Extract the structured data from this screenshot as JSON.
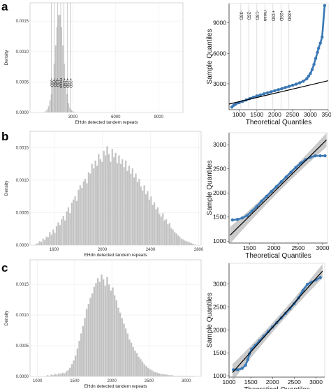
{
  "panels": {
    "a": {
      "letter": "a"
    },
    "b": {
      "letter": "b"
    },
    "c": {
      "letter": "c"
    }
  },
  "chart_data": [
    {
      "id": "hist-a",
      "type": "bar",
      "xlabel": "EHdn detected tandem repeats",
      "ylabel": "Density",
      "xlim": [
        0,
        10700
      ],
      "ylim": [
        0,
        0.0018
      ],
      "xticks": [
        3000,
        6000,
        9000
      ],
      "xtick_labels": [
        "3000",
        "6000",
        "9000"
      ],
      "yticks": [
        0,
        0.0005,
        0.001,
        0.0015
      ],
      "ytick_labels": [
        "0.0000",
        "0.0005",
        "0.0010",
        "0.0015"
      ],
      "bin_width": 100,
      "x": [
        1100,
        1200,
        1300,
        1400,
        1500,
        1600,
        1700,
        1800,
        1900,
        2000,
        2100,
        2200,
        2300,
        2400,
        2500,
        2600,
        2700,
        2800,
        2900,
        3000,
        3100
      ],
      "values": [
        2e-05,
        5e-05,
        0.0001,
        0.0002,
        0.0003,
        0.0005,
        0.0008,
        0.0011,
        0.0014,
        0.0016,
        0.0016,
        0.0014,
        0.0011,
        0.0008,
        0.0005,
        0.0003,
        0.00015,
        8e-05,
        4e-05,
        2e-05,
        1e-05
      ],
      "vlines": [
        {
          "label": "-3SD",
          "x": 1480
        },
        {
          "label": "-2SD",
          "x": 1700
        },
        {
          "label": "-1SD",
          "x": 1920
        },
        {
          "label": "mean",
          "x": 2150
        },
        {
          "label": "+1SD",
          "x": 2380
        },
        {
          "label": "+2SD",
          "x": 2600
        },
        {
          "label": "+3SD",
          "x": 2820
        }
      ]
    },
    {
      "id": "qq-a",
      "type": "scatter",
      "xlabel": "Theoretical Quantiles",
      "ylabel": "Sample Quantiles",
      "xlim": [
        720,
        3500
      ],
      "ylim": [
        450,
        10900
      ],
      "xticks": [
        1000,
        1500,
        2000,
        2500,
        3000,
        3500
      ],
      "xtick_labels": [
        "1000",
        "1500",
        "2000",
        "2500",
        "3000",
        "3500"
      ],
      "yticks": [
        3000,
        6000,
        9000
      ],
      "ytick_labels": [
        "3000",
        "6000",
        "9000"
      ],
      "vlines": [
        {
          "label": "-3SD",
          "x": 1050
        },
        {
          "label": "-2SD",
          "x": 1270
        },
        {
          "label": "-1SD",
          "x": 1500
        },
        {
          "label": "mean",
          "x": 1730
        },
        {
          "label": "+1SD",
          "x": 1950
        },
        {
          "label": "+2SD",
          "x": 2180
        },
        {
          "label": "+3SD",
          "x": 2400
        }
      ],
      "points": [
        [
          800,
          700
        ],
        [
          850,
          880
        ],
        [
          900,
          980
        ],
        [
          1000,
          1130
        ],
        [
          1100,
          1260
        ],
        [
          1200,
          1400
        ],
        [
          1300,
          1540
        ],
        [
          1400,
          1670
        ],
        [
          1500,
          1800
        ],
        [
          1600,
          1900
        ],
        [
          1700,
          2010
        ],
        [
          1800,
          2110
        ],
        [
          1900,
          2210
        ],
        [
          2000,
          2310
        ],
        [
          2100,
          2410
        ],
        [
          2200,
          2520
        ],
        [
          2300,
          2630
        ],
        [
          2400,
          2740
        ],
        [
          2500,
          2850
        ],
        [
          2600,
          2960
        ],
        [
          2700,
          3090
        ],
        [
          2800,
          3250
        ],
        [
          2900,
          3500
        ],
        [
          2950,
          3750
        ],
        [
          3000,
          4000
        ],
        [
          3050,
          4400
        ],
        [
          3100,
          4900
        ],
        [
          3150,
          5500
        ],
        [
          3200,
          6100
        ],
        [
          3230,
          6500
        ],
        [
          3280,
          7000
        ],
        [
          3330,
          7600
        ],
        [
          3400,
          10700
        ]
      ],
      "fit": [
        [
          720,
          1000
        ],
        [
          3500,
          3300
        ]
      ]
    },
    {
      "id": "hist-b",
      "type": "bar",
      "xlabel": "EHdn detected tandem repeats",
      "ylabel": "Density",
      "xlim": [
        1400,
        2820
      ],
      "ylim": [
        0,
        0.00175
      ],
      "xticks": [
        1600,
        2000,
        2400,
        2800
      ],
      "xtick_labels": [
        "1600",
        "2000",
        "2400",
        "2800"
      ],
      "yticks": [
        0,
        0.0005,
        0.001,
        0.0015
      ],
      "ytick_labels": [
        "0.0000",
        "0.0005",
        "0.0010",
        "0.0015"
      ],
      "bin_width": 14,
      "x": [
        1453,
        1467,
        1481,
        1495,
        1509,
        1523,
        1537,
        1551,
        1565,
        1579,
        1593,
        1607,
        1621,
        1635,
        1649,
        1663,
        1677,
        1691,
        1705,
        1719,
        1733,
        1747,
        1761,
        1775,
        1789,
        1803,
        1817,
        1831,
        1845,
        1859,
        1873,
        1887,
        1901,
        1915,
        1929,
        1943,
        1957,
        1971,
        1985,
        1999,
        2013,
        2027,
        2041,
        2055,
        2069,
        2083,
        2097,
        2111,
        2125,
        2139,
        2153,
        2167,
        2181,
        2195,
        2209,
        2223,
        2237,
        2251,
        2265,
        2279,
        2293,
        2307,
        2321,
        2335,
        2349,
        2363,
        2377,
        2391,
        2405,
        2419,
        2433,
        2447,
        2461,
        2475,
        2489,
        2503,
        2517,
        2531,
        2545,
        2559,
        2573,
        2587,
        2601,
        2615,
        2629,
        2643,
        2657,
        2671,
        2685,
        2699,
        2713,
        2727,
        2741,
        2755,
        2769
      ],
      "values": [
        2e-05,
        3e-05,
        6e-05,
        5e-05,
        0.0001,
        8e-05,
        0.00013,
        0.00012,
        0.0002,
        0.00016,
        0.00024,
        0.00019,
        0.00029,
        0.00035,
        0.00031,
        0.0004,
        0.00045,
        0.00038,
        0.00052,
        0.00058,
        0.00049,
        0.00065,
        0.0007,
        0.00075,
        0.00068,
        0.00085,
        0.00092,
        0.00088,
        0.00098,
        0.00102,
        0.00095,
        0.00112,
        0.0011,
        0.00125,
        0.00118,
        0.0013,
        0.00122,
        0.0014,
        0.00132,
        0.00128,
        0.00145,
        0.00138,
        0.00152,
        0.0014,
        0.00128,
        0.00148,
        0.00135,
        0.00142,
        0.00126,
        0.00138,
        0.00125,
        0.00132,
        0.0012,
        0.0013,
        0.00114,
        0.00122,
        0.0011,
        0.00118,
        0.00104,
        0.0011,
        0.00097,
        0.00102,
        0.0009,
        0.00084,
        0.00092,
        0.00078,
        0.00083,
        0.0007,
        0.00075,
        0.00062,
        0.00066,
        0.00055,
        0.00058,
        0.00048,
        0.00044,
        0.00049,
        0.00038,
        0.0004,
        0.00032,
        0.00034,
        0.00026,
        0.00024,
        0.0002,
        0.00018,
        0.00015,
        0.00013,
        0.0001,
        9e-05,
        7e-05,
        6e-05,
        5e-05,
        4e-05,
        3e-05,
        2e-05,
        1e-05
      ]
    },
    {
      "id": "qq-b",
      "type": "scatter",
      "xlabel": "Theoretical Quantiles",
      "ylabel": "Sample Quantiles",
      "xlim": [
        1080,
        3100
      ],
      "ylim": [
        960,
        3250
      ],
      "xticks": [
        1500,
        2000,
        2500,
        3000
      ],
      "xtick_labels": [
        "1500",
        "2000",
        "2500",
        "3000"
      ],
      "yticks": [
        1000,
        1500,
        2000,
        2500,
        3000
      ],
      "ytick_labels": [
        "1000",
        "1500",
        "2000",
        "2500",
        "3000"
      ],
      "points": [
        [
          1150,
          1440
        ],
        [
          1250,
          1450
        ],
        [
          1350,
          1480
        ],
        [
          1450,
          1530
        ],
        [
          1550,
          1620
        ],
        [
          1650,
          1720
        ],
        [
          1750,
          1830
        ],
        [
          1850,
          1930
        ],
        [
          1950,
          2030
        ],
        [
          2050,
          2130
        ],
        [
          2150,
          2230
        ],
        [
          2250,
          2330
        ],
        [
          2350,
          2430
        ],
        [
          2450,
          2530
        ],
        [
          2550,
          2620
        ],
        [
          2650,
          2690
        ],
        [
          2750,
          2740
        ],
        [
          2850,
          2770
        ],
        [
          2950,
          2770
        ],
        [
          3050,
          2770
        ]
      ],
      "fit": [
        [
          1100,
          1120
        ],
        [
          3080,
          3100
        ]
      ]
    },
    {
      "id": "hist-c",
      "type": "bar",
      "xlabel": "EHdn detected tandem repeats",
      "ylabel": "Density",
      "xlim": [
        900,
        3200
      ],
      "ylim": [
        0,
        0.0019
      ],
      "xticks": [
        1000,
        1500,
        2000,
        2500,
        3000
      ],
      "xtick_labels": [
        "1000",
        "1500",
        "2000",
        "2500",
        "3000"
      ],
      "yticks": [
        0,
        0.0005,
        0.001,
        0.0015
      ],
      "ytick_labels": [
        "0.0000",
        "0.0005",
        "0.0010",
        "0.0015"
      ],
      "bin_width": 25,
      "x": [
        1113,
        1138,
        1163,
        1188,
        1213,
        1238,
        1263,
        1288,
        1313,
        1338,
        1363,
        1388,
        1413,
        1438,
        1463,
        1488,
        1513,
        1538,
        1563,
        1588,
        1613,
        1638,
        1663,
        1688,
        1713,
        1738,
        1763,
        1788,
        1813,
        1838,
        1863,
        1888,
        1913,
        1938,
        1963,
        1988,
        2013,
        2038,
        2063,
        2088,
        2113,
        2138,
        2163,
        2188,
        2213,
        2238,
        2263,
        2288,
        2313,
        2338,
        2363,
        2388,
        2413,
        2438,
        2463,
        2488,
        2513,
        2538,
        2563,
        2588,
        2613,
        2638,
        2663,
        2688,
        2713,
        2738,
        2763,
        2788,
        2813,
        2838,
        2863,
        2888,
        2913,
        2938,
        2963,
        2988,
        3013,
        3038,
        3063,
        3088
      ],
      "values": [
        1e-05,
        2e-05,
        1e-05,
        3e-05,
        2e-05,
        4e-05,
        3e-05,
        5e-05,
        4e-05,
        6e-05,
        5e-05,
        8e-05,
        0.0001,
        0.00014,
        0.0002,
        0.00026,
        0.00034,
        0.00045,
        0.00058,
        0.0007,
        0.00082,
        0.00095,
        0.0011,
        0.00118,
        0.00128,
        0.00135,
        0.00146,
        0.00152,
        0.0016,
        0.00154,
        0.00166,
        0.00158,
        0.00148,
        0.00162,
        0.0015,
        0.0014,
        0.00145,
        0.00132,
        0.00124,
        0.00112,
        0.00104,
        0.00095,
        0.00086,
        0.00078,
        0.0007,
        0.0006,
        0.00055,
        0.00048,
        0.00042,
        0.00038,
        0.00032,
        0.00028,
        0.00024,
        0.0002,
        0.00017,
        0.00014,
        0.00012,
        0.0001,
        8e-05,
        7e-05,
        6e-05,
        5e-05,
        4e-05,
        4e-05,
        3e-05,
        3e-05,
        2e-05,
        2e-05,
        2e-05,
        1e-05,
        1e-05,
        1e-05,
        1e-05,
        1e-05,
        1e-05,
        1e-05,
        1e-05,
        1e-05,
        1e-05,
        1e-05
      ]
    },
    {
      "id": "qq-c",
      "type": "scatter",
      "xlabel": "Theoretical Quantiles",
      "ylabel": "Sample Quantiles",
      "xlim": [
        1000,
        3200
      ],
      "ylim": [
        970,
        3450
      ],
      "xticks": [
        1000,
        1500,
        2000,
        2500,
        3000
      ],
      "xtick_labels": [
        "1000",
        "1500",
        "2000",
        "2500",
        "3000"
      ],
      "yticks": [
        1000,
        1500,
        2000,
        2500,
        3000
      ],
      "ytick_labels": [
        "1000",
        "1500",
        "2000",
        "2500",
        "3000"
      ],
      "points": [
        [
          1100,
          1130
        ],
        [
          1200,
          1130
        ],
        [
          1300,
          1160
        ],
        [
          1380,
          1230
        ],
        [
          1430,
          1350
        ],
        [
          1470,
          1480
        ],
        [
          1520,
          1580
        ],
        [
          1600,
          1660
        ],
        [
          1700,
          1760
        ],
        [
          1800,
          1860
        ],
        [
          1900,
          1960
        ],
        [
          2000,
          2060
        ],
        [
          2100,
          2160
        ],
        [
          2200,
          2260
        ],
        [
          2300,
          2360
        ],
        [
          2400,
          2460
        ],
        [
          2500,
          2570
        ],
        [
          2600,
          2700
        ],
        [
          2700,
          2860
        ],
        [
          2800,
          2990
        ],
        [
          2900,
          3040
        ],
        [
          3000,
          3090
        ],
        [
          3100,
          3140
        ]
      ],
      "fit": [
        [
          1080,
          1070
        ],
        [
          3150,
          3280
        ]
      ]
    }
  ]
}
